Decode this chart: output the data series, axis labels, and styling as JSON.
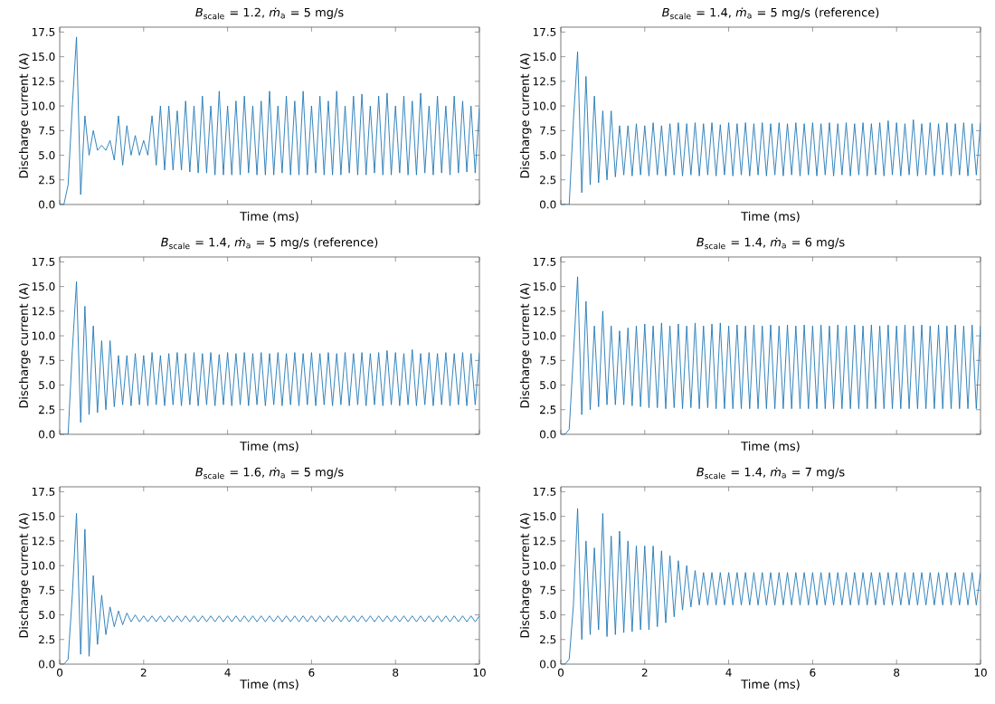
{
  "chart_data": [
    {
      "type": "line",
      "title": "*B*$_{scale}$ = 1.2, *ṁ*$_{a}$ = 5 mg/s",
      "xlabel": "Time (ms)",
      "ylabel": "Discharge current (A)",
      "tick_labels": "y",
      "xlim": [
        0,
        10
      ],
      "ylim": [
        0,
        18
      ],
      "xticks": [
        0,
        2,
        4,
        6,
        8,
        10
      ],
      "yticks": [
        {
          "value": 0,
          "label": "0.0"
        },
        2.5,
        {
          "value": 5,
          "label": "5.0"
        },
        7.5,
        {
          "value": 10,
          "label": "10.0"
        },
        12.5,
        {
          "value": 15,
          "label": "15.0"
        },
        17.5
      ],
      "x": [
        0,
        0.1,
        0.2,
        0.3,
        0.4,
        0.5,
        0.6,
        0.7,
        0.8,
        0.9,
        1,
        1.1,
        1.2,
        1.3,
        1.4,
        1.5,
        1.6,
        1.7,
        1.8,
        1.9,
        2,
        2.1,
        2.2,
        2.3,
        2.4,
        2.5,
        2.6,
        2.7,
        2.8,
        2.9,
        3,
        3.1,
        3.2,
        3.3,
        3.4,
        3.5,
        3.6,
        3.7,
        3.8,
        3.9,
        4,
        4.1,
        4.2,
        4.3,
        4.4,
        4.5,
        4.6,
        4.7,
        4.8,
        4.9,
        5,
        5.1,
        5.2,
        5.3,
        5.4,
        5.5,
        5.6,
        5.7,
        5.8,
        5.9,
        6,
        6.1,
        6.2,
        6.3,
        6.4,
        6.5,
        6.6,
        6.7,
        6.8,
        6.9,
        7,
        7.1,
        7.2,
        7.3,
        7.4,
        7.5,
        7.6,
        7.7,
        7.8,
        7.9,
        8,
        8.1,
        8.2,
        8.3,
        8.4,
        8.5,
        8.6,
        8.7,
        8.8,
        8.9,
        9,
        9.1,
        9.2,
        9.3,
        9.4,
        9.5,
        9.6,
        9.7,
        9.8,
        9.9,
        10
      ],
      "series": [
        {
          "color": "#1f77b4",
          "values": [
            0,
            0,
            2,
            10,
            17,
            1,
            9,
            5,
            7.5,
            5.5,
            6,
            5.5,
            6.5,
            4.5,
            9,
            4,
            8,
            5,
            7,
            5,
            6.5,
            5,
            9,
            4,
            10,
            3.5,
            10,
            3.5,
            9.5,
            3.5,
            10.5,
            3.3,
            10,
            3.2,
            11,
            3.2,
            10,
            3,
            11.5,
            3,
            10,
            3,
            10.5,
            3,
            11,
            3.2,
            10,
            3,
            10.5,
            3,
            11.5,
            3,
            10,
            3.2,
            11,
            3,
            10.5,
            3,
            11.5,
            3,
            10,
            3.2,
            11,
            3,
            10.5,
            3,
            11.5,
            3,
            10,
            3.2,
            11,
            3,
            11.2,
            3,
            10,
            3.2,
            11,
            3,
            11.3,
            3,
            10,
            3.2,
            11,
            3,
            10.5,
            3,
            11.3,
            3.2,
            10,
            3,
            11,
            3.2,
            10,
            3,
            11,
            3.2,
            10.5,
            3.3,
            10,
            3.2,
            9.8
          ]
        }
      ]
    },
    {
      "type": "line",
      "title": "*B*$_{scale}$ = 1.4, *ṁ*$_{a}$ = 5 mg/s (reference)",
      "xlabel": "Time (ms)",
      "ylabel": "Discharge current (A)",
      "tick_labels": "y",
      "xlim": [
        0,
        10
      ],
      "ylim": [
        0,
        18
      ],
      "xticks": [
        0,
        2,
        4,
        6,
        8,
        10
      ],
      "yticks": [
        {
          "value": 0,
          "label": "0.0"
        },
        2.5,
        {
          "value": 5,
          "label": "5.0"
        },
        7.5,
        {
          "value": 10,
          "label": "10.0"
        },
        12.5,
        {
          "value": 15,
          "label": "15.0"
        },
        17.5
      ],
      "x": [
        0,
        0.1,
        0.2,
        0.3,
        0.4,
        0.5,
        0.6,
        0.7,
        0.8,
        0.9,
        1,
        1.1,
        1.2,
        1.3,
        1.4,
        1.5,
        1.6,
        1.7,
        1.8,
        1.9,
        2,
        2.1,
        2.2,
        2.3,
        2.4,
        2.5,
        2.6,
        2.7,
        2.8,
        2.9,
        3,
        3.1,
        3.2,
        3.3,
        3.4,
        3.5,
        3.6,
        3.7,
        3.8,
        3.9,
        4,
        4.1,
        4.2,
        4.3,
        4.4,
        4.5,
        4.6,
        4.7,
        4.8,
        4.9,
        5,
        5.1,
        5.2,
        5.3,
        5.4,
        5.5,
        5.6,
        5.7,
        5.8,
        5.9,
        6,
        6.1,
        6.2,
        6.3,
        6.4,
        6.5,
        6.6,
        6.7,
        6.8,
        6.9,
        7,
        7.1,
        7.2,
        7.3,
        7.4,
        7.5,
        7.6,
        7.7,
        7.8,
        7.9,
        8,
        8.1,
        8.2,
        8.3,
        8.4,
        8.5,
        8.6,
        8.7,
        8.8,
        8.9,
        9,
        9.1,
        9.2,
        9.3,
        9.4,
        9.5,
        9.6,
        9.7,
        9.8,
        9.9,
        10
      ],
      "series": [
        {
          "color": "#1f77b4",
          "values": [
            0,
            0,
            0,
            8.5,
            15.5,
            1.2,
            13,
            2,
            11,
            2.2,
            9.5,
            2.5,
            9.5,
            2.8,
            8,
            3,
            8,
            2.9,
            8.2,
            3,
            8,
            2.9,
            8.3,
            3,
            8,
            2.9,
            8.2,
            3,
            8.3,
            2.9,
            8.2,
            3,
            8.3,
            2.9,
            8.2,
            3,
            8.3,
            2.9,
            8.1,
            3,
            8.3,
            2.9,
            8.2,
            3,
            8.3,
            2.9,
            8.2,
            3,
            8.3,
            2.9,
            8.2,
            3,
            8.3,
            2.9,
            8.2,
            3,
            8.3,
            2.9,
            8.2,
            3,
            8.3,
            2.9,
            8.2,
            3,
            8.3,
            2.9,
            8.2,
            3,
            8.3,
            2.9,
            8.2,
            3,
            8.3,
            2.9,
            8.2,
            3,
            8.3,
            2.9,
            8.5,
            3,
            8.3,
            2.9,
            8.2,
            3,
            8.6,
            2.9,
            8.2,
            3,
            8.3,
            2.9,
            8.2,
            3,
            8.3,
            2.9,
            8.2,
            3,
            8.3,
            2.9,
            8.2,
            3,
            8.3
          ]
        }
      ]
    },
    {
      "type": "line",
      "title": "*B*$_{scale}$ = 1.4, *ṁ*$_{a}$ = 5 mg/s (reference)",
      "xlabel": "Time (ms)",
      "ylabel": "Discharge current (A)",
      "tick_labels": "y",
      "xlim": [
        0,
        10
      ],
      "ylim": [
        0,
        18
      ],
      "xticks": [
        0,
        2,
        4,
        6,
        8,
        10
      ],
      "yticks": [
        {
          "value": 0,
          "label": "0.0"
        },
        2.5,
        {
          "value": 5,
          "label": "5.0"
        },
        7.5,
        {
          "value": 10,
          "label": "10.0"
        },
        12.5,
        {
          "value": 15,
          "label": "15.0"
        },
        17.5
      ],
      "x": [
        0,
        0.1,
        0.2,
        0.3,
        0.4,
        0.5,
        0.6,
        0.7,
        0.8,
        0.9,
        1,
        1.1,
        1.2,
        1.3,
        1.4,
        1.5,
        1.6,
        1.7,
        1.8,
        1.9,
        2,
        2.1,
        2.2,
        2.3,
        2.4,
        2.5,
        2.6,
        2.7,
        2.8,
        2.9,
        3,
        3.1,
        3.2,
        3.3,
        3.4,
        3.5,
        3.6,
        3.7,
        3.8,
        3.9,
        4,
        4.1,
        4.2,
        4.3,
        4.4,
        4.5,
        4.6,
        4.7,
        4.8,
        4.9,
        5,
        5.1,
        5.2,
        5.3,
        5.4,
        5.5,
        5.6,
        5.7,
        5.8,
        5.9,
        6,
        6.1,
        6.2,
        6.3,
        6.4,
        6.5,
        6.6,
        6.7,
        6.8,
        6.9,
        7,
        7.1,
        7.2,
        7.3,
        7.4,
        7.5,
        7.6,
        7.7,
        7.8,
        7.9,
        8,
        8.1,
        8.2,
        8.3,
        8.4,
        8.5,
        8.6,
        8.7,
        8.8,
        8.9,
        9,
        9.1,
        9.2,
        9.3,
        9.4,
        9.5,
        9.6,
        9.7,
        9.8,
        9.9,
        10
      ],
      "series": [
        {
          "color": "#1f77b4",
          "values": [
            0,
            0,
            0,
            8.5,
            15.5,
            1.2,
            13,
            2,
            11,
            2.2,
            9.5,
            2.5,
            9.5,
            2.8,
            8,
            3,
            8,
            2.9,
            8.2,
            3,
            8,
            2.9,
            8.3,
            3,
            8,
            2.9,
            8.2,
            3,
            8.3,
            2.9,
            8.2,
            3,
            8.3,
            2.9,
            8.2,
            3,
            8.3,
            2.9,
            8.1,
            3,
            8.3,
            2.9,
            8.2,
            3,
            8.3,
            2.9,
            8.2,
            3,
            8.3,
            2.9,
            8.2,
            3,
            8.3,
            2.9,
            8.2,
            3,
            8.3,
            2.9,
            8.2,
            3,
            8.3,
            2.9,
            8.2,
            3,
            8.3,
            2.9,
            8.2,
            3,
            8.3,
            2.9,
            8.2,
            3,
            8.3,
            2.9,
            8.2,
            3,
            8.3,
            2.9,
            8.5,
            3,
            8.3,
            2.9,
            8.2,
            3,
            8.6,
            2.9,
            8.2,
            3,
            8.3,
            2.9,
            8.2,
            3,
            8.3,
            2.9,
            8.2,
            3,
            8.3,
            2.9,
            8.2,
            3,
            8.3
          ]
        }
      ]
    },
    {
      "type": "line",
      "title": "*B*$_{scale}$ = 1.4, *ṁ*$_{a}$ = 6 mg/s",
      "xlabel": "Time (ms)",
      "ylabel": "Discharge current (A)",
      "tick_labels": "y",
      "xlim": [
        0,
        10
      ],
      "ylim": [
        0,
        18
      ],
      "xticks": [
        0,
        2,
        4,
        6,
        8,
        10
      ],
      "yticks": [
        {
          "value": 0,
          "label": "0.0"
        },
        2.5,
        {
          "value": 5,
          "label": "5.0"
        },
        7.5,
        {
          "value": 10,
          "label": "10.0"
        },
        12.5,
        {
          "value": 15,
          "label": "15.0"
        },
        17.5
      ],
      "x": [
        0,
        0.1,
        0.2,
        0.3,
        0.4,
        0.5,
        0.6,
        0.7,
        0.8,
        0.9,
        1,
        1.1,
        1.2,
        1.3,
        1.4,
        1.5,
        1.6,
        1.7,
        1.8,
        1.9,
        2,
        2.1,
        2.2,
        2.3,
        2.4,
        2.5,
        2.6,
        2.7,
        2.8,
        2.9,
        3,
        3.1,
        3.2,
        3.3,
        3.4,
        3.5,
        3.6,
        3.7,
        3.8,
        3.9,
        4,
        4.1,
        4.2,
        4.3,
        4.4,
        4.5,
        4.6,
        4.7,
        4.8,
        4.9,
        5,
        5.1,
        5.2,
        5.3,
        5.4,
        5.5,
        5.6,
        5.7,
        5.8,
        5.9,
        6,
        6.1,
        6.2,
        6.3,
        6.4,
        6.5,
        6.6,
        6.7,
        6.8,
        6.9,
        7,
        7.1,
        7.2,
        7.3,
        7.4,
        7.5,
        7.6,
        7.7,
        7.8,
        7.9,
        8,
        8.1,
        8.2,
        8.3,
        8.4,
        8.5,
        8.6,
        8.7,
        8.8,
        8.9,
        9,
        9.1,
        9.2,
        9.3,
        9.4,
        9.5,
        9.6,
        9.7,
        9.8,
        9.9,
        10
      ],
      "series": [
        {
          "color": "#1f77b4",
          "values": [
            0,
            0,
            0.5,
            8,
            16,
            2,
            13.5,
            2.5,
            11,
            2.8,
            12.5,
            3,
            11,
            3,
            10.5,
            3,
            10.8,
            2.9,
            11,
            2.8,
            11.2,
            2.7,
            11,
            2.7,
            11.3,
            2.6,
            11,
            2.7,
            11.2,
            2.6,
            11,
            2.7,
            11.3,
            2.6,
            11,
            2.7,
            11.2,
            2.6,
            11.3,
            2.6,
            11,
            2.6,
            11.1,
            2.6,
            11,
            2.6,
            11.1,
            2.6,
            11,
            2.6,
            11.1,
            2.6,
            11,
            2.6,
            11.1,
            2.6,
            11,
            2.6,
            11.1,
            2.6,
            11,
            2.6,
            11.1,
            2.6,
            11,
            2.6,
            11.1,
            2.6,
            11,
            2.6,
            11.1,
            2.6,
            11,
            2.6,
            11.1,
            2.6,
            11,
            2.6,
            11.1,
            2.6,
            11,
            2.6,
            11.1,
            2.6,
            11,
            2.6,
            11.1,
            2.6,
            11,
            2.6,
            11.1,
            2.6,
            11,
            2.6,
            11.1,
            2.6,
            11,
            2.6,
            11.1,
            2.6,
            11
          ]
        }
      ]
    },
    {
      "type": "line",
      "title": "*B*$_{scale}$ = 1.6, *ṁ*$_{a}$ = 5 mg/s",
      "xlabel": "Time (ms)",
      "ylabel": "Discharge current (A)",
      "xlim": [
        0,
        10
      ],
      "ylim": [
        0,
        18
      ],
      "xticks": [
        0,
        2,
        4,
        6,
        8,
        10
      ],
      "yticks": [
        {
          "value": 0,
          "label": "0.0"
        },
        2.5,
        {
          "value": 5,
          "label": "5.0"
        },
        7.5,
        {
          "value": 10,
          "label": "10.0"
        },
        12.5,
        {
          "value": 15,
          "label": "15.0"
        },
        17.5
      ],
      "x": [
        0,
        0.1,
        0.2,
        0.3,
        0.4,
        0.5,
        0.6,
        0.7,
        0.8,
        0.9,
        1,
        1.1,
        1.2,
        1.3,
        1.4,
        1.5,
        1.6,
        1.7,
        1.8,
        1.9,
        2,
        2.1,
        2.2,
        2.3,
        2.4,
        2.5,
        2.6,
        2.7,
        2.8,
        2.9,
        3,
        3.1,
        3.2,
        3.3,
        3.4,
        3.5,
        3.6,
        3.7,
        3.8,
        3.9,
        4,
        4.1,
        4.2,
        4.3,
        4.4,
        4.5,
        4.6,
        4.7,
        4.8,
        4.9,
        5,
        5.1,
        5.2,
        5.3,
        5.4,
        5.5,
        5.6,
        5.7,
        5.8,
        5.9,
        6,
        6.1,
        6.2,
        6.3,
        6.4,
        6.5,
        6.6,
        6.7,
        6.8,
        6.9,
        7,
        7.1,
        7.2,
        7.3,
        7.4,
        7.5,
        7.6,
        7.7,
        7.8,
        7.9,
        8,
        8.1,
        8.2,
        8.3,
        8.4,
        8.5,
        8.6,
        8.7,
        8.8,
        8.9,
        9,
        9.1,
        9.2,
        9.3,
        9.4,
        9.5,
        9.6,
        9.7,
        9.8,
        9.9,
        10
      ],
      "series": [
        {
          "color": "#1f77b4",
          "values": [
            0,
            0,
            0.5,
            7,
            15.3,
            1,
            13.7,
            0.8,
            9,
            2,
            7,
            3,
            5.8,
            3.8,
            5.4,
            4,
            5.2,
            4.3,
            5,
            4.3,
            4.9,
            4.3,
            4.9,
            4.3,
            4.9,
            4.3,
            4.9,
            4.3,
            4.9,
            4.3,
            4.9,
            4.3,
            4.9,
            4.3,
            4.9,
            4.3,
            4.9,
            4.3,
            4.9,
            4.3,
            4.9,
            4.3,
            4.9,
            4.3,
            4.9,
            4.3,
            4.9,
            4.3,
            4.9,
            4.3,
            4.9,
            4.3,
            4.9,
            4.3,
            4.9,
            4.3,
            4.9,
            4.3,
            4.9,
            4.3,
            4.9,
            4.3,
            4.9,
            4.3,
            4.9,
            4.3,
            4.9,
            4.3,
            4.9,
            4.3,
            4.9,
            4.3,
            4.9,
            4.3,
            4.9,
            4.3,
            4.9,
            4.3,
            4.9,
            4.3,
            4.9,
            4.3,
            4.9,
            4.3,
            4.9,
            4.3,
            4.9,
            4.3,
            4.9,
            4.3,
            4.9,
            4.3,
            4.9,
            4.3,
            4.9,
            4.3,
            4.9,
            4.3,
            4.9,
            4.3,
            4.9
          ]
        }
      ]
    },
    {
      "type": "line",
      "title": "*B*$_{scale}$ = 1.4, *ṁ*$_{a}$ = 7 mg/s",
      "xlabel": "Time (ms)",
      "ylabel": "Discharge current (A)",
      "xlim": [
        0,
        10
      ],
      "ylim": [
        0,
        18
      ],
      "xticks": [
        0,
        2,
        4,
        6,
        8,
        10
      ],
      "yticks": [
        {
          "value": 0,
          "label": "0.0"
        },
        2.5,
        {
          "value": 5,
          "label": "5.0"
        },
        7.5,
        {
          "value": 10,
          "label": "10.0"
        },
        12.5,
        {
          "value": 15,
          "label": "15.0"
        },
        17.5
      ],
      "x": [
        0,
        0.1,
        0.2,
        0.3,
        0.4,
        0.5,
        0.6,
        0.7,
        0.8,
        0.9,
        1,
        1.1,
        1.2,
        1.3,
        1.4,
        1.5,
        1.6,
        1.7,
        1.8,
        1.9,
        2,
        2.1,
        2.2,
        2.3,
        2.4,
        2.5,
        2.6,
        2.7,
        2.8,
        2.9,
        3,
        3.1,
        3.2,
        3.3,
        3.4,
        3.5,
        3.6,
        3.7,
        3.8,
        3.9,
        4,
        4.1,
        4.2,
        4.3,
        4.4,
        4.5,
        4.6,
        4.7,
        4.8,
        4.9,
        5,
        5.1,
        5.2,
        5.3,
        5.4,
        5.5,
        5.6,
        5.7,
        5.8,
        5.9,
        6,
        6.1,
        6.2,
        6.3,
        6.4,
        6.5,
        6.6,
        6.7,
        6.8,
        6.9,
        7,
        7.1,
        7.2,
        7.3,
        7.4,
        7.5,
        7.6,
        7.7,
        7.8,
        7.9,
        8,
        8.1,
        8.2,
        8.3,
        8.4,
        8.5,
        8.6,
        8.7,
        8.8,
        8.9,
        9,
        9.1,
        9.2,
        9.3,
        9.4,
        9.5,
        9.6,
        9.7,
        9.8,
        9.9,
        10
      ],
      "series": [
        {
          "color": "#1f77b4",
          "values": [
            0,
            0,
            0.5,
            6,
            15.8,
            2.5,
            12.5,
            3,
            11.8,
            3.5,
            15.3,
            2.8,
            13,
            3,
            13.5,
            3.2,
            12.5,
            3.3,
            12,
            3.5,
            12,
            3.5,
            12,
            3.8,
            11.5,
            4.2,
            11,
            4.8,
            10.5,
            5.5,
            10,
            5.8,
            9.5,
            6,
            9.3,
            6,
            9.3,
            6,
            9.3,
            6,
            9.3,
            6,
            9.3,
            6,
            9.3,
            6,
            9.3,
            6,
            9.3,
            6,
            9.3,
            6,
            9.3,
            6,
            9.3,
            6,
            9.3,
            6,
            9.3,
            6,
            9.3,
            6,
            9.3,
            6,
            9.3,
            6,
            9.3,
            6,
            9.3,
            6,
            9.3,
            6,
            9.3,
            6,
            9.3,
            6,
            9.3,
            6,
            9.3,
            6,
            9.3,
            6,
            9.3,
            6,
            9.3,
            6,
            9.3,
            6,
            9.3,
            6,
            9.3,
            6,
            9.3,
            6,
            9.3,
            6,
            9.3,
            6,
            9.3,
            6,
            9.3
          ]
        }
      ]
    }
  ]
}
